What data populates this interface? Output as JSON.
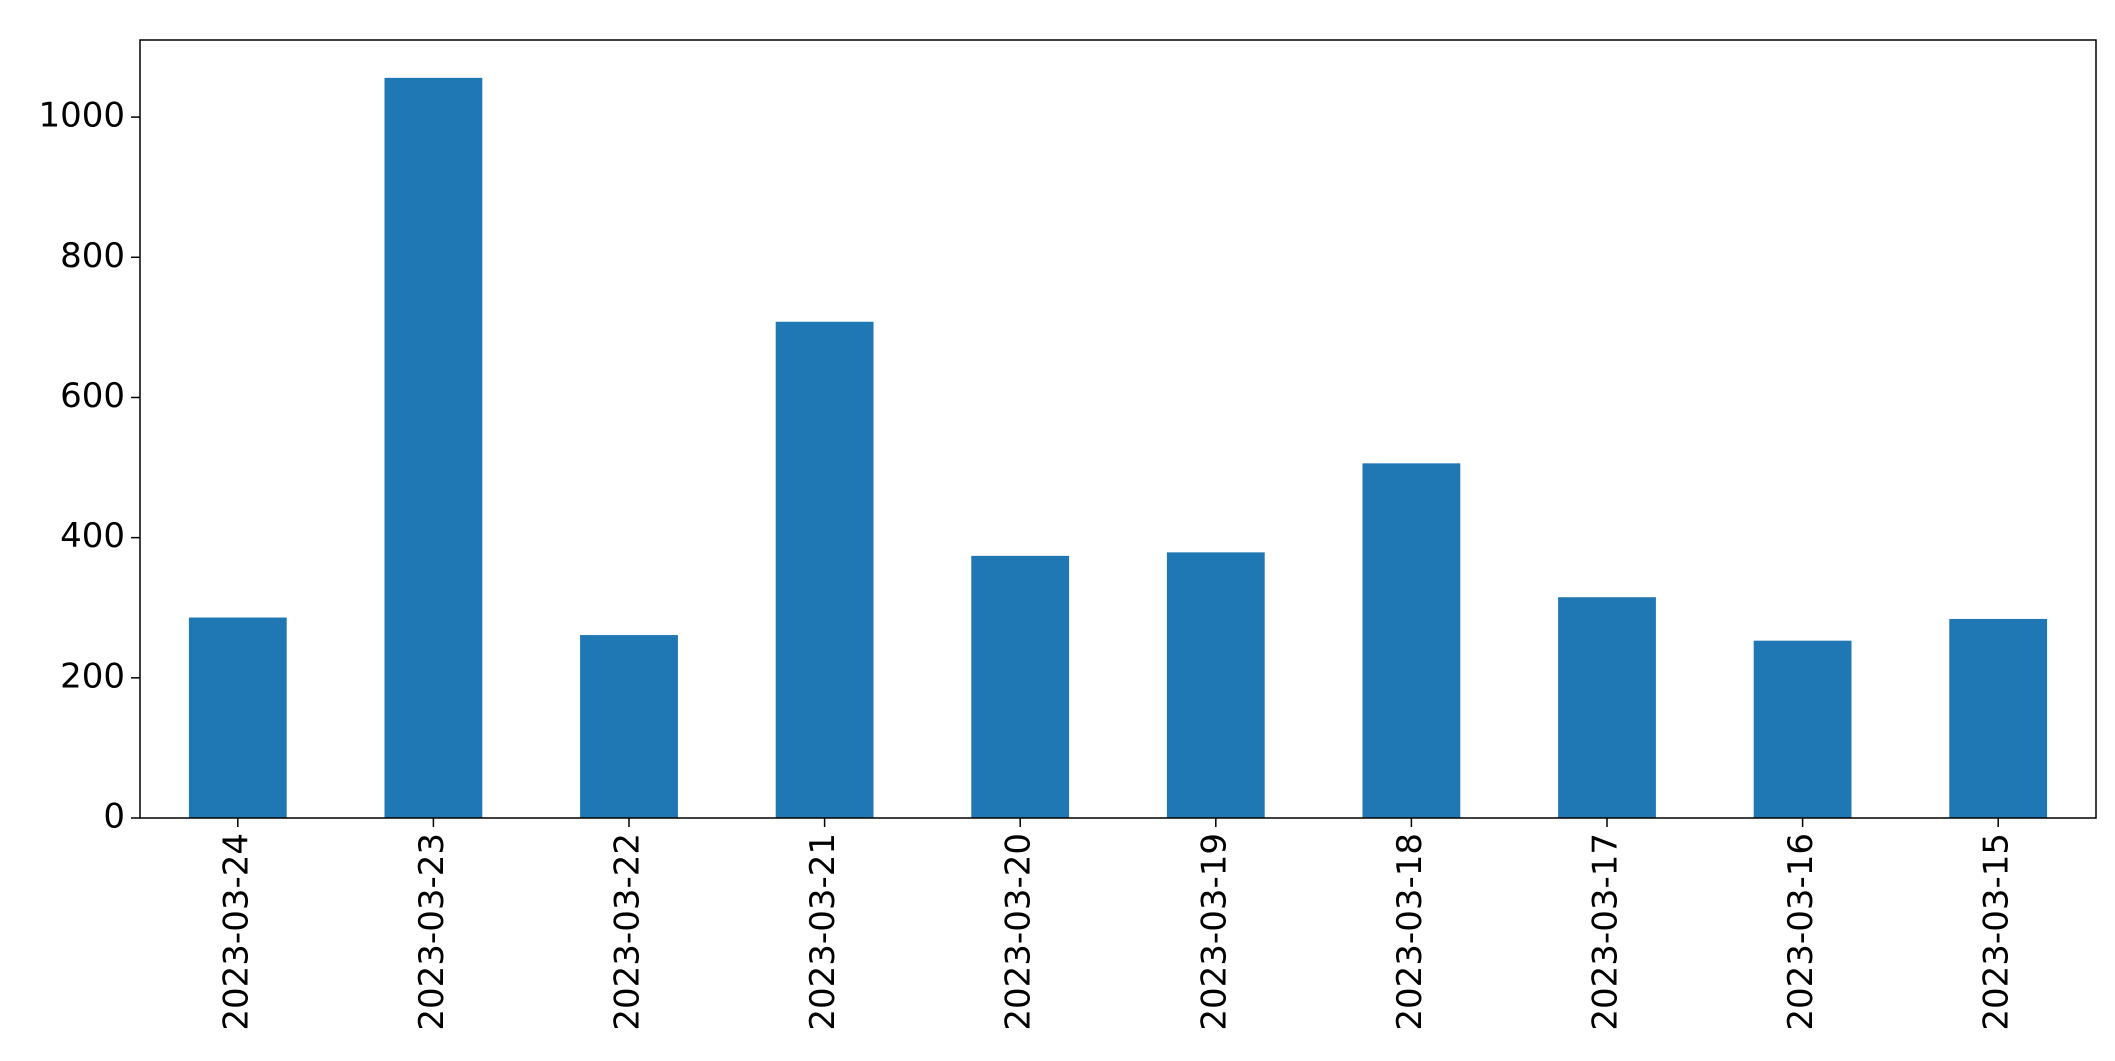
{
  "chart_data": {
    "type": "bar",
    "categories": [
      "2023-03-24",
      "2023-03-23",
      "2023-03-22",
      "2023-03-21",
      "2023-03-20",
      "2023-03-19",
      "2023-03-18",
      "2023-03-17",
      "2023-03-16",
      "2023-03-15"
    ],
    "values": [
      286,
      1056,
      261,
      708,
      374,
      379,
      506,
      315,
      253,
      284
    ],
    "color": "#1f77b4",
    "ylim": [
      0,
      1110
    ],
    "yticks": [
      0,
      200,
      400,
      600,
      800,
      1000
    ],
    "grid": false
  }
}
